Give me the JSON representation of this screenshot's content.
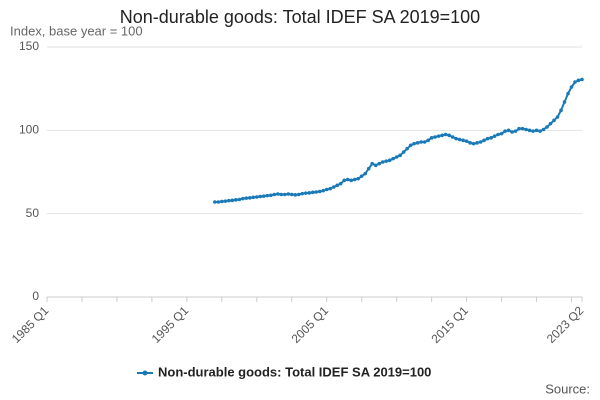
{
  "chart_data": {
    "type": "line",
    "title": "Non-durable goods: Total IDEF SA 2019=100",
    "subtitle": "Index, base year = 100",
    "source": "Source:",
    "categories": [
      "1985 Q1",
      null,
      null,
      null,
      null,
      null,
      null,
      null,
      null,
      null,
      null,
      null,
      null,
      null,
      null,
      null,
      null,
      null,
      null,
      null,
      null,
      null,
      null,
      null,
      null,
      null,
      null,
      null,
      null,
      null,
      null,
      null,
      null,
      null,
      null,
      null,
      null,
      null,
      null,
      null,
      "1995 Q1",
      null,
      null,
      null,
      null,
      null,
      null,
      null,
      null,
      null,
      null,
      null,
      null,
      null,
      null,
      null,
      null,
      null,
      null,
      null,
      null,
      null,
      null,
      null,
      null,
      null,
      null,
      null,
      null,
      null,
      null,
      null,
      null,
      null,
      null,
      null,
      null,
      null,
      null,
      null,
      "2005 Q1",
      null,
      null,
      null,
      null,
      null,
      null,
      null,
      null,
      null,
      null,
      null,
      null,
      null,
      null,
      null,
      null,
      null,
      null,
      null,
      null,
      null,
      null,
      null,
      null,
      null,
      null,
      null,
      null,
      null,
      null,
      null,
      null,
      null,
      null,
      null,
      null,
      null,
      null,
      null,
      "2015 Q1",
      null,
      null,
      null,
      null,
      null,
      null,
      null,
      null,
      null,
      null,
      null,
      null,
      null,
      null,
      null,
      null,
      null,
      null,
      null,
      null,
      null,
      null,
      null,
      null,
      null,
      null,
      null,
      null,
      null,
      null,
      null,
      null,
      "2023 Q2"
    ],
    "series": [
      {
        "name": "Non-durable goods: Total IDEF SA 2019=100",
        "color": "#1a7ab8",
        "values": [
          null,
          null,
          null,
          null,
          null,
          null,
          null,
          null,
          null,
          null,
          null,
          null,
          null,
          null,
          null,
          null,
          null,
          null,
          null,
          null,
          null,
          null,
          null,
          null,
          null,
          null,
          null,
          null,
          null,
          null,
          null,
          null,
          null,
          null,
          null,
          null,
          null,
          null,
          null,
          null,
          null,
          null,
          null,
          null,
          null,
          null,
          null,
          null,
          57,
          57,
          57.3,
          57.5,
          57.8,
          58,
          58.3,
          58.5,
          59,
          59.3,
          59.5,
          59.8,
          60,
          60.3,
          60.5,
          60.8,
          61,
          61.5,
          61.8,
          61.5,
          61.5,
          61.8,
          61.5,
          61.3,
          61.5,
          62,
          62.3,
          62.5,
          62.8,
          63,
          63.3,
          63.8,
          64.5,
          65,
          66,
          67,
          68,
          70,
          70.5,
          70,
          70.5,
          71,
          72.5,
          74,
          77,
          80,
          79,
          80,
          81,
          81.5,
          82,
          83,
          84,
          85,
          87,
          89,
          91,
          92,
          92.5,
          93,
          93,
          94,
          95.5,
          96,
          96.5,
          97,
          97.5,
          97,
          96,
          95,
          94.5,
          94,
          93.5,
          92.5,
          92,
          92.5,
          93,
          94,
          95,
          95.5,
          96.5,
          97.5,
          98,
          99.5,
          100,
          99,
          99.5,
          101,
          101,
          100.5,
          100,
          99.5,
          100,
          99.5,
          100.5,
          102,
          104,
          106,
          108,
          112,
          117,
          122,
          126,
          129,
          130,
          130.5
        ]
      }
    ],
    "ylim": [
      0,
      150
    ],
    "yticks": [
      0,
      50,
      100,
      150
    ],
    "grid": true
  }
}
